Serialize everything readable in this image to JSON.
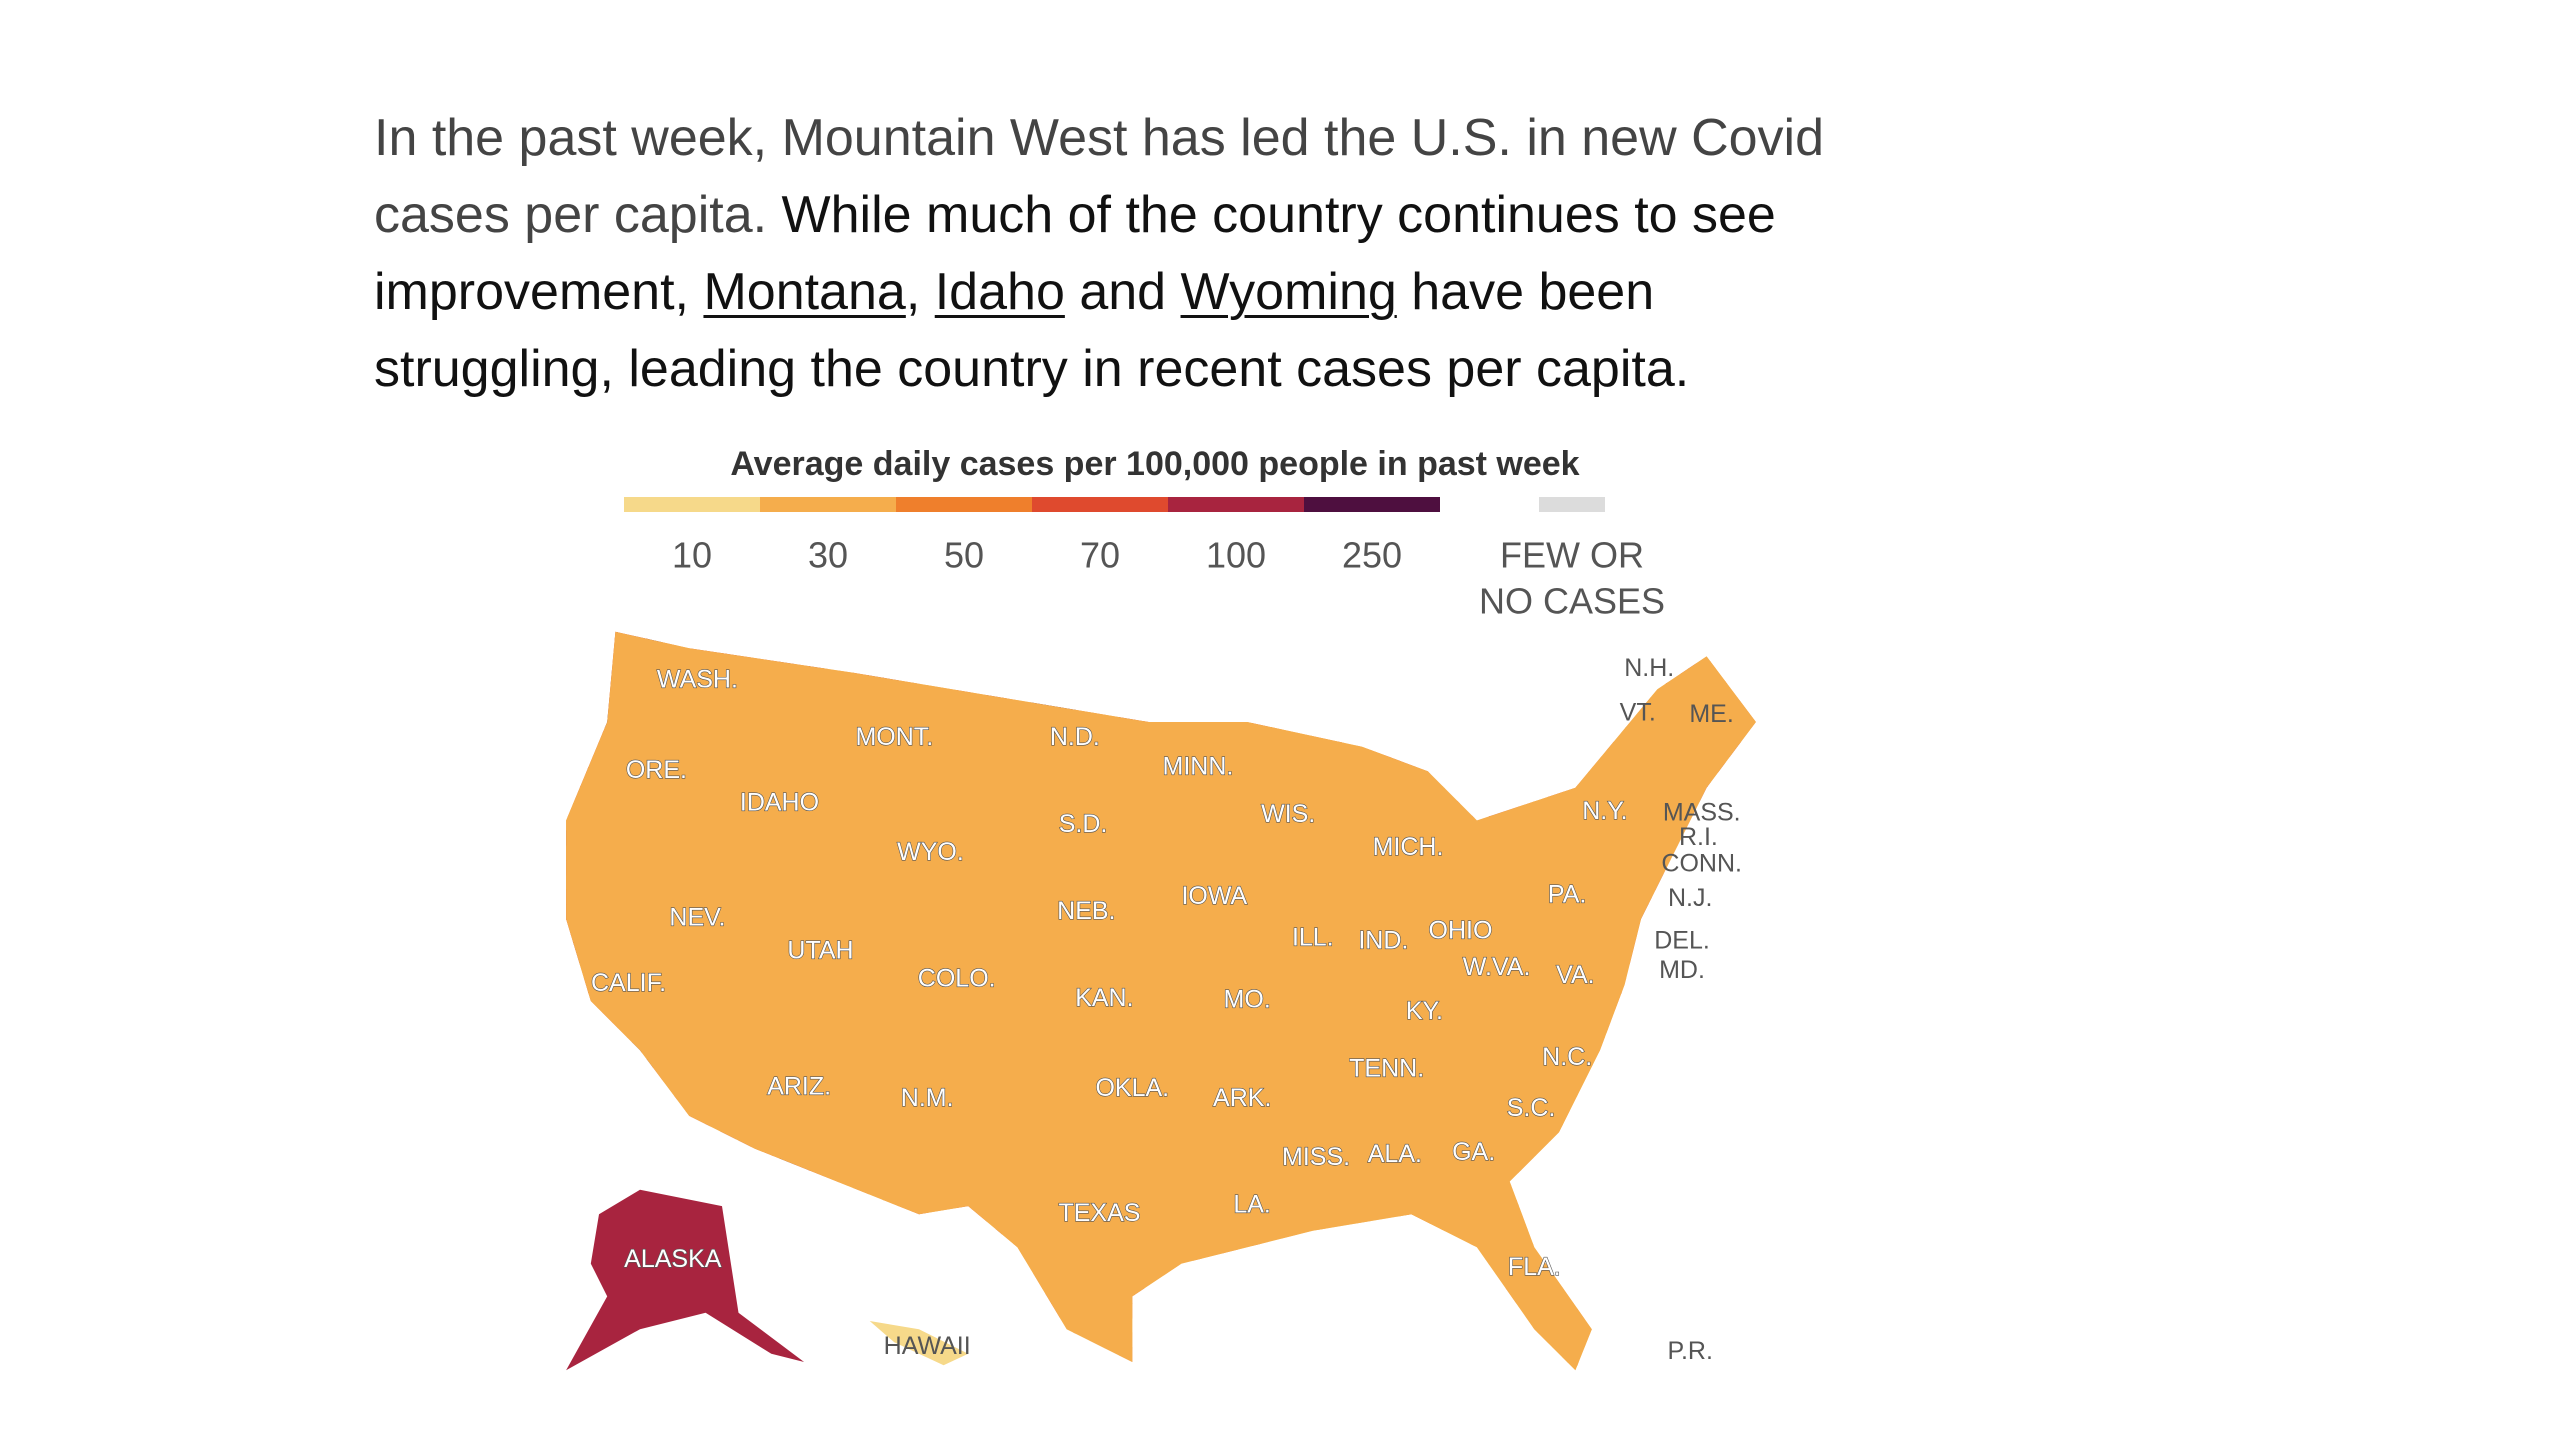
{
  "paragraph": {
    "lines": [
      [
        " In the past week, Mountain West has led the U.S. in new Covid"
      ],
      [
        "cases per capita.",
        " While much of the country continues to see"
      ],
      [
        "improvement, ",
        "Montana",
        ", ",
        "Idaho",
        " and ",
        "Wyoming",
        " have been"
      ],
      [
        "struggling, leading the country in recent cases per capita."
      ]
    ]
  },
  "legend": {
    "title": "Average daily cases per 100,000 people in past week",
    "ticks": [
      10,
      30,
      50,
      70,
      100,
      250
    ],
    "colors": [
      "#f6d98a",
      "#f5ad4c",
      "#ef7f2c",
      "#df4a2e",
      "#a8243f",
      "#4e0f3f"
    ],
    "no_cases_label": [
      "FEW OR",
      "NO CASES"
    ],
    "no_cases_color": "#dcdcdc"
  },
  "map": {
    "labels": [
      "WASH.",
      "ORE.",
      "IDAHO",
      "MONT.",
      "N.D.",
      "MINN.",
      "WIS.",
      "MICH.",
      "S.D.",
      "WYO.",
      "NEB.",
      "IOWA",
      "NEV.",
      "UTAH",
      "COLO.",
      "KAN.",
      "MO.",
      "ILL.",
      "IND.",
      "OHIO",
      "PA.",
      "N.Y.",
      "W.VA.",
      "VA.",
      "KY.",
      "CALIF.",
      "ARIZ.",
      "N.M.",
      "OKLA.",
      "ARK.",
      "TENN.",
      "N.C.",
      "S.C.",
      "MISS.",
      "ALA.",
      "GA.",
      "TEXAS",
      "LA.",
      "FLA.",
      "ALASKA",
      "HAWAII",
      "P.R.",
      "N.H.",
      "VT.",
      "ME.",
      "MASS.",
      "R.I.",
      "CONN.",
      "N.J.",
      "DEL.",
      "MD."
    ]
  }
}
